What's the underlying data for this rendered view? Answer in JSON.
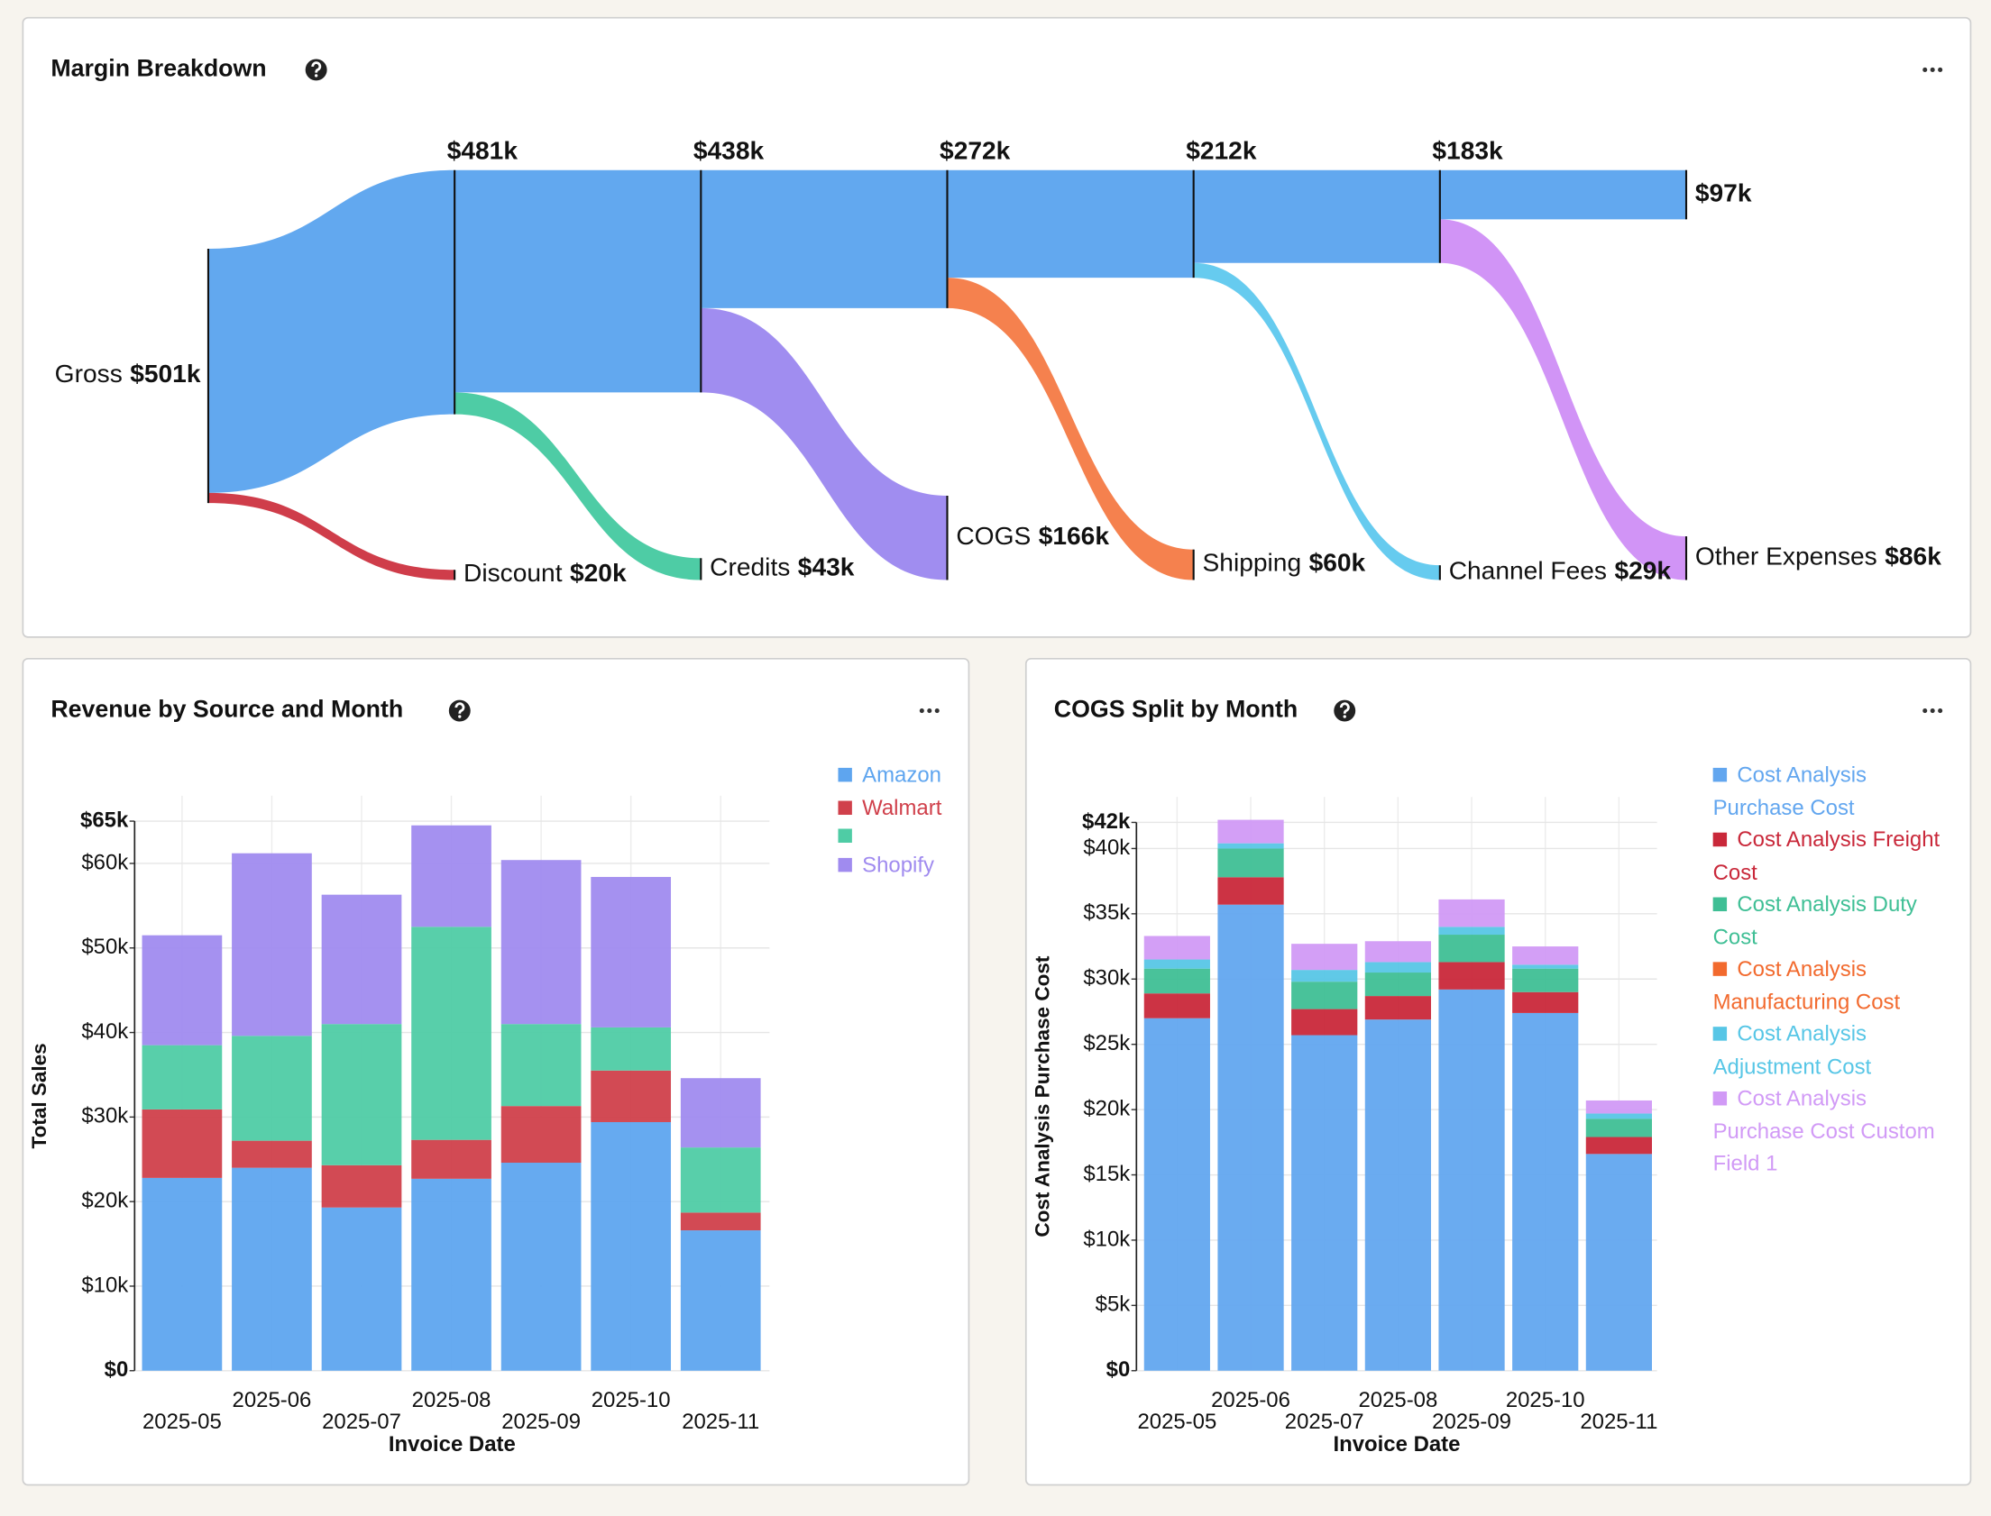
{
  "chart_data": [
    {
      "type": "sankey",
      "title": "Margin Breakdown",
      "source": "Gross",
      "color": "#5aa3ee",
      "steps": {
        "values": [
          501,
          481,
          438,
          272,
          212,
          183,
          97
        ],
        "value_labels": [
          "$501k",
          "$481k",
          "$438k",
          "$272k",
          "$212k",
          "$183k",
          "$97k"
        ]
      },
      "drops": {
        "names": [
          "Discount",
          "Credits",
          "COGS",
          "Shipping",
          "Channel Fees",
          "Other Expenses"
        ],
        "values": [
          20,
          43,
          166,
          60,
          29,
          86
        ],
        "value_labels": [
          "$20k",
          "$43k",
          "$166k",
          "$60k",
          "$29k",
          "$86k"
        ],
        "colors": [
          "#cc3340",
          "#45c9a0",
          "#9b87ef",
          "#f47a45",
          "#5ec8ee",
          "#cf8ef6"
        ]
      }
    },
    {
      "type": "bar",
      "stacked": true,
      "title": "Revenue by Source and Month",
      "x_label": "Invoice Date",
      "y_label": "Total Sales",
      "categories": [
        "2025-05",
        "2025-06",
        "2025-07",
        "2025-08",
        "2025-09",
        "2025-10",
        "2025-11"
      ],
      "series": [
        {
          "name": "Amazon",
          "color": "#5ea5ef",
          "values": [
            22800,
            24000,
            19300,
            22700,
            24600,
            29400,
            16600
          ]
        },
        {
          "name": "Walmart",
          "color": "#d0404b",
          "values": [
            8100,
            3200,
            5000,
            4600,
            6700,
            6100,
            2100
          ]
        },
        {
          "name": null,
          "color": "#4fcca5",
          "values": [
            7600,
            12400,
            16700,
            25200,
            9700,
            5100,
            7700
          ]
        },
        {
          "name": "Shopify",
          "color": "#a08bef",
          "values": [
            13000,
            21600,
            15300,
            12000,
            19400,
            17800,
            8200
          ]
        }
      ],
      "ylim": [
        0,
        65000
      ],
      "yticks": [
        {
          "value": 0,
          "label": "$0"
        },
        {
          "value": 10000,
          "label": "$10k"
        },
        {
          "value": 20000,
          "label": "$20k"
        },
        {
          "value": 30000,
          "label": "$30k"
        },
        {
          "value": 40000,
          "label": "$40k"
        },
        {
          "value": 50000,
          "label": "$50k"
        },
        {
          "value": 60000,
          "label": "$60k"
        },
        {
          "value": 65000,
          "label": "$65k"
        }
      ],
      "grid": true
    },
    {
      "type": "bar",
      "stacked": true,
      "title": "COGS Split by Month",
      "x_label": "Invoice Date",
      "y_label": "Cost Analysis Purchase Cost",
      "categories": [
        "2025-05",
        "2025-06",
        "2025-07",
        "2025-08",
        "2025-09",
        "2025-10",
        "2025-11"
      ],
      "series": [
        {
          "name": "Cost Analysis Purchase Cost",
          "color": "#62a6ef",
          "values": [
            27000,
            35700,
            25700,
            26900,
            29200,
            27400,
            16600
          ]
        },
        {
          "name": "Cost Analysis Freight Cost",
          "color": "#c9283a",
          "values": [
            1900,
            2100,
            2000,
            1800,
            2100,
            1600,
            1300
          ]
        },
        {
          "name": "Cost Analysis Duty Cost",
          "color": "#3fbf95",
          "values": [
            1900,
            2200,
            2100,
            1800,
            2100,
            1800,
            1400
          ]
        },
        {
          "name": "Cost Analysis Manufacturing Cost",
          "color": "#f26a2e",
          "values": [
            0,
            0,
            0,
            0,
            0,
            0,
            0
          ]
        },
        {
          "name": "Cost Analysis Adjustment Cost",
          "color": "#57c6e6",
          "values": [
            700,
            400,
            900,
            800,
            600,
            300,
            400
          ]
        },
        {
          "name": "Cost Analysis Purchase Cost Custom Field 1",
          "color": "#d19af6",
          "values": [
            1800,
            1800,
            2000,
            1600,
            2100,
            1400,
            1000
          ]
        }
      ],
      "ylim": [
        0,
        42000
      ],
      "yticks": [
        {
          "value": 0,
          "label": "$0"
        },
        {
          "value": 5000,
          "label": "$5k"
        },
        {
          "value": 10000,
          "label": "$10k"
        },
        {
          "value": 15000,
          "label": "$15k"
        },
        {
          "value": 20000,
          "label": "$20k"
        },
        {
          "value": 25000,
          "label": "$25k"
        },
        {
          "value": 30000,
          "label": "$30k"
        },
        {
          "value": 35000,
          "label": "$35k"
        },
        {
          "value": 40000,
          "label": "$40k"
        },
        {
          "value": 42000,
          "label": "$42k"
        }
      ],
      "grid": true
    }
  ]
}
